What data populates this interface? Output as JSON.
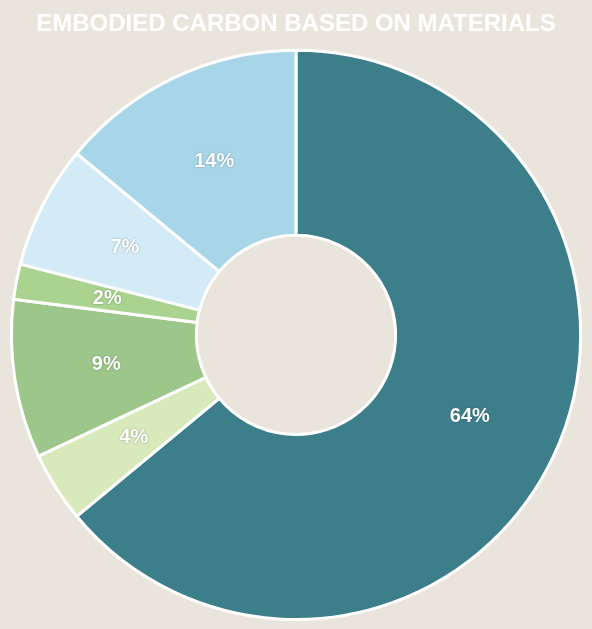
{
  "chart_data": {
    "type": "doughnut",
    "title": "EMBODIED CARBON BASED ON MATERIALS",
    "values": [
      64,
      4,
      9,
      2,
      7,
      14
    ],
    "value_labels": [
      "64%",
      "4%",
      "9%",
      "2%",
      "7%",
      "14%"
    ],
    "colors": [
      "#3c7f8b",
      "#d8eabb",
      "#9cc68a",
      "#a9d38f",
      "#d3ebf6",
      "#a7d6e8"
    ],
    "data_labels": true
  }
}
